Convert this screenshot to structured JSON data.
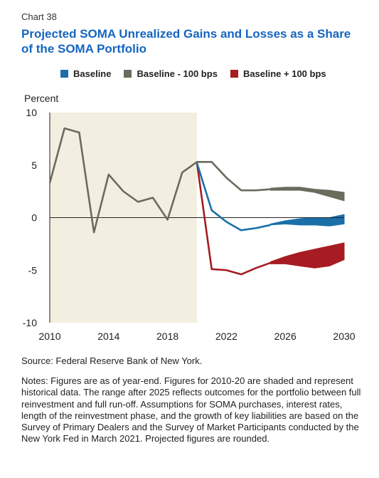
{
  "header": {
    "chart_number": "Chart 38",
    "title": "Projected SOMA Unrealized Gains and Losses as a Share of the SOMA Portfolio"
  },
  "footer": {
    "source": "Source: Federal Reserve Bank of New York.",
    "notes": "Notes: Figures are as of year-end. Figures for 2010-20 are shaded and represent historical data. The range after 2025 reflects outcomes for the portfolio between full reinvestment and full run-off. Assumptions for SOMA purchases, interest rates, length of the reinvestment phase, and the growth of key liabilities are based on the Survey of Primary Dealers and the Survey of Market Participants conducted by the New York Fed in March 2021. Projected figures are rounded."
  },
  "colors": {
    "baseline": "#1a6fa8",
    "baseline_minus_100": "#6b6b5e",
    "baseline_plus_100": "#a61c22",
    "history_shade": "#f3efe0"
  },
  "chart_data": {
    "type": "line",
    "ylabel": "Percent",
    "xlim": [
      2010,
      2030
    ],
    "ylim": [
      -10,
      10
    ],
    "yticks": [
      10,
      5,
      0,
      -5,
      -10
    ],
    "xticks": [
      2010,
      2014,
      2018,
      2022,
      2026,
      2030
    ],
    "shaded_history": [
      2010,
      2020
    ],
    "grid": false,
    "legend_position": "top",
    "series": [
      {
        "name": "Baseline",
        "color_key": "baseline",
        "x": [
          2020,
          2021,
          2022,
          2023,
          2024,
          2025
        ],
        "y": [
          5.2,
          0.7,
          -0.4,
          -1.2,
          -1.0,
          -0.7
        ],
        "range_x": [
          2025,
          2026,
          2027,
          2028,
          2029,
          2030
        ],
        "range_high": [
          -0.6,
          -0.3,
          -0.1,
          0.0,
          0.0,
          0.3
        ],
        "range_low": [
          -0.7,
          -0.6,
          -0.7,
          -0.7,
          -0.8,
          -0.6
        ]
      },
      {
        "name": "Baseline - 100 bps",
        "color_key": "baseline_minus_100",
        "x": [
          2010,
          2011,
          2012,
          2013,
          2014,
          2015,
          2016,
          2017,
          2018,
          2019,
          2020,
          2021,
          2022,
          2023,
          2024,
          2025
        ],
        "y": [
          3.3,
          8.5,
          8.1,
          -1.4,
          4.1,
          2.5,
          1.5,
          1.9,
          -0.2,
          4.3,
          5.3,
          5.3,
          3.8,
          2.6,
          2.6,
          2.7
        ],
        "range_x": [
          2025,
          2026,
          2027,
          2028,
          2029,
          2030
        ],
        "range_high": [
          2.8,
          2.9,
          2.9,
          2.7,
          2.6,
          2.4
        ],
        "range_low": [
          2.6,
          2.6,
          2.6,
          2.4,
          2.0,
          1.6
        ]
      },
      {
        "name": "Baseline + 100 bps",
        "color_key": "baseline_plus_100",
        "x": [
          2020,
          2021,
          2022,
          2023,
          2024,
          2025
        ],
        "y": [
          5.2,
          -4.9,
          -5.0,
          -5.4,
          -4.8,
          -4.3
        ],
        "range_x": [
          2025,
          2026,
          2027,
          2028,
          2029,
          2030
        ],
        "range_high": [
          -4.2,
          -3.7,
          -3.3,
          -3.0,
          -2.7,
          -2.4
        ],
        "range_low": [
          -4.4,
          -4.4,
          -4.6,
          -4.8,
          -4.6,
          -4.0
        ]
      }
    ]
  }
}
